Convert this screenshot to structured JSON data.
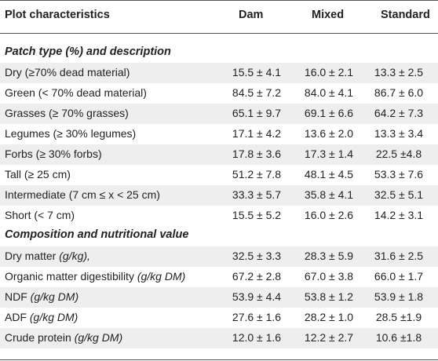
{
  "header": {
    "col0": "Plot characteristics",
    "col1": "Dam",
    "col2": "Mixed",
    "col3": "Standard"
  },
  "sections": [
    {
      "title": "Patch type (%) and description",
      "rows": [
        {
          "label": "Dry (≥70% dead material)",
          "unit": "",
          "dam": "15.5 ± 4.1",
          "mixed": "16.0 ± 2.1",
          "standard": "13.3 ± 2.5"
        },
        {
          "label": "Green (< 70% dead material)",
          "unit": "",
          "dam": "84.5 ± 7.2",
          "mixed": "84.0 ± 4.1",
          "standard": "86.7 ± 6.0"
        },
        {
          "label": "Grasses (≥ 70% grasses)",
          "unit": "",
          "dam": "65.1 ± 9.7",
          "mixed": "69.1 ± 6.6",
          "standard": "64.2 ± 7.3"
        },
        {
          "label": "Legumes (≥ 30% legumes)",
          "unit": "",
          "dam": "17.1 ± 4.2",
          "mixed": "13.6 ± 2.0",
          "standard": "13.3 ± 3.4"
        },
        {
          "label": "Forbs (≥ 30% forbs)",
          "unit": "",
          "dam": "17.8 ± 3.6",
          "mixed": "17.3 ± 1.4",
          "standard": "22.5 ±4.8"
        },
        {
          "label": "Tall (≥ 25 cm)",
          "unit": "",
          "dam": "51.2 ± 7.8",
          "mixed": "48.1 ± 4.5",
          "standard": "53.3 ± 7.6"
        },
        {
          "label": "Intermediate (7 cm ≤ x < 25 cm)",
          "unit": "",
          "dam": "33.3 ± 5.7",
          "mixed": "35.8 ± 4.1",
          "standard": "32.5 ± 5.1"
        },
        {
          "label": "Short (< 7 cm)",
          "unit": "",
          "dam": "15.5 ± 5.2",
          "mixed": "16.0 ± 2.6",
          "standard": "14.2 ± 3.1"
        }
      ]
    },
    {
      "title": "Composition and nutritional value",
      "rows": [
        {
          "label": "Dry matter ",
          "unit": "(g/kg),",
          "dam": "32.5 ± 3.3",
          "mixed": "28.3 ± 5.9",
          "standard": "31.6 ± 2.5"
        },
        {
          "label": "Organic matter digestibility ",
          "unit": "(g/kg DM)",
          "dam": "67.2 ± 2.8",
          "mixed": "67.0 ± 3.8",
          "standard": "66.0 ± 1.7"
        },
        {
          "label": "NDF ",
          "unit": "(g/kg DM)",
          "dam": "53.9 ± 4.4",
          "mixed": "53.8 ± 1.2",
          "standard": "53.9 ± 1.8"
        },
        {
          "label": "ADF ",
          "unit": "(g/kg DM)",
          "dam": "27.6 ± 1.6",
          "mixed": "28.2 ± 1.0",
          "standard": "28.5 ±1.9"
        },
        {
          "label": "Crude protein ",
          "unit": "(g/kg DM)",
          "dam": "12.0 ± 1.6",
          "mixed": "12.2 ± 2.7",
          "standard": "10.6 ±1.8"
        }
      ]
    }
  ]
}
